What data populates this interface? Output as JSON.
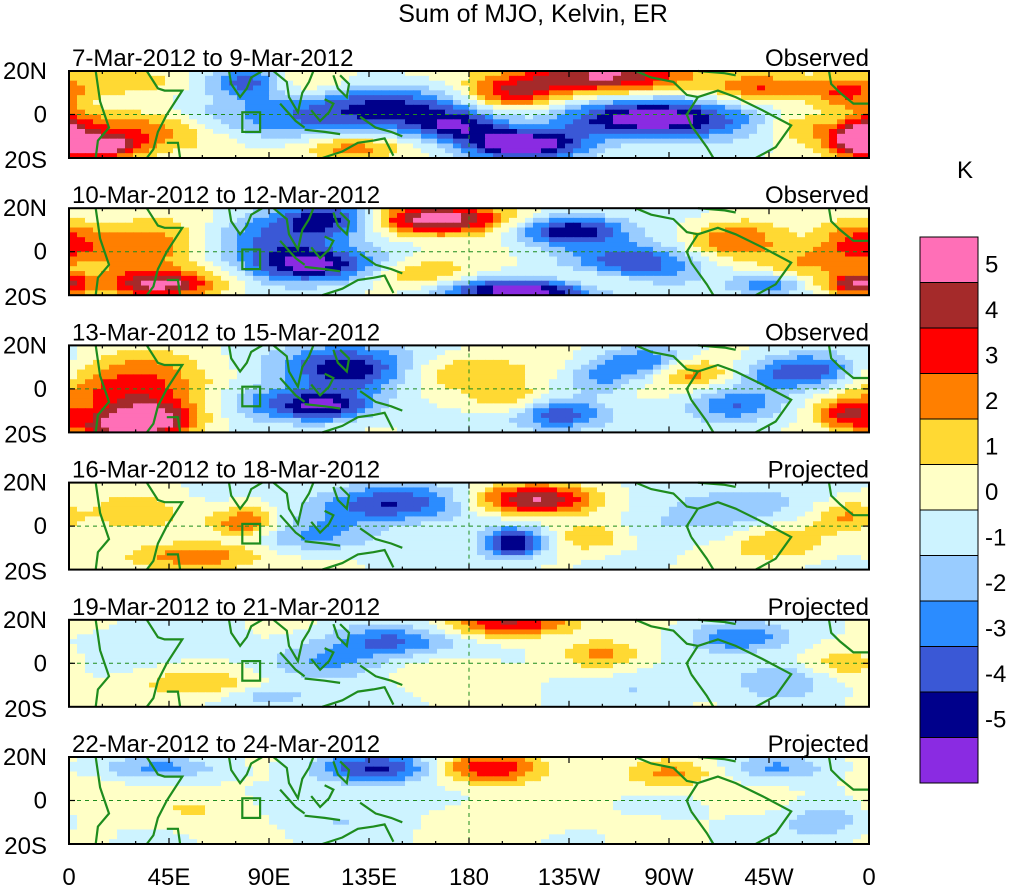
{
  "title": "Sum of MJO, Kelvin, ER",
  "colorbar": {
    "unit": "K",
    "labels": [
      "5",
      "4",
      "3",
      "2",
      "1",
      "0",
      "-1",
      "-2",
      "-3",
      "-4",
      "-5"
    ],
    "colors": [
      "#ff6fb7",
      "#a52a2a",
      "#ff0000",
      "#ff7f00",
      "#ffd933",
      "#ffffc6",
      "#cdf3ff",
      "#99ccff",
      "#2b8cff",
      "#3a58d6",
      "#00008b",
      "#8a2be2"
    ]
  },
  "axes": {
    "lat_labels": [
      "20N",
      "0",
      "20S"
    ],
    "lon_labels": [
      "0",
      "45E",
      "90E",
      "135E",
      "180",
      "135W",
      "90W",
      "45W",
      "0"
    ]
  },
  "panels": [
    {
      "date_range": "7-Mar-2012 to 9-Mar-2012",
      "status": "Observed"
    },
    {
      "date_range": "10-Mar-2012 to 12-Mar-2012",
      "status": "Observed"
    },
    {
      "date_range": "13-Mar-2012 to 15-Mar-2012",
      "status": "Observed"
    },
    {
      "date_range": "16-Mar-2012 to 18-Mar-2012",
      "status": "Projected"
    },
    {
      "date_range": "19-Mar-2012 to 21-Mar-2012",
      "status": "Projected"
    },
    {
      "date_range": "22-Mar-2012 to 24-Mar-2012",
      "status": "Projected"
    }
  ],
  "map_data": {
    "lat_range": [
      -20,
      20
    ],
    "lon_range": [
      0,
      360
    ],
    "blobs": [
      [
        [
          240,
          18,
          60,
          9,
          5
        ],
        [
          265,
          -2,
          60,
          10,
          -6
        ],
        [
          200,
          10,
          30,
          8,
          4
        ],
        [
          205,
          -14,
          40,
          8,
          -6
        ],
        [
          175,
          -5,
          30,
          8,
          -4
        ],
        [
          145,
          5,
          50,
          10,
          -3
        ],
        [
          110,
          -2,
          70,
          12,
          -3
        ],
        [
          30,
          -8,
          50,
          10,
          3
        ],
        [
          25,
          15,
          35,
          7,
          2
        ],
        [
          310,
          12,
          30,
          8,
          3
        ],
        [
          330,
          -5,
          25,
          8,
          2
        ],
        [
          350,
          10,
          25,
          9,
          3
        ],
        [
          355,
          -12,
          20,
          8,
          5
        ],
        [
          15,
          -15,
          25,
          6,
          5
        ],
        [
          125,
          -15,
          35,
          7,
          3
        ],
        [
          105,
          15,
          30,
          8,
          2
        ],
        [
          80,
          15,
          25,
          8,
          -4
        ],
        [
          0,
          -5,
          15,
          10,
          2
        ]
      ],
      [
        [
          165,
          15,
          50,
          8,
          6
        ],
        [
          205,
          -18,
          50,
          6,
          -6
        ],
        [
          120,
          15,
          35,
          9,
          -5
        ],
        [
          90,
          5,
          40,
          12,
          -3
        ],
        [
          110,
          -6,
          40,
          9,
          -5
        ],
        [
          35,
          2,
          40,
          14,
          3
        ],
        [
          40,
          -15,
          35,
          7,
          5
        ],
        [
          225,
          10,
          35,
          8,
          -5
        ],
        [
          255,
          -5,
          40,
          10,
          -4
        ],
        [
          300,
          5,
          30,
          10,
          3
        ],
        [
          330,
          -5,
          30,
          10,
          2
        ],
        [
          355,
          5,
          25,
          12,
          3
        ],
        [
          355,
          -15,
          20,
          6,
          5
        ],
        [
          160,
          -10,
          30,
          8,
          2
        ],
        [
          240,
          -14,
          30,
          6,
          2
        ],
        [
          315,
          -15,
          25,
          6,
          -3
        ]
      ],
      [
        [
          30,
          0,
          45,
          16,
          4
        ],
        [
          35,
          -14,
          30,
          8,
          5
        ],
        [
          125,
          10,
          40,
          12,
          -5
        ],
        [
          115,
          -8,
          30,
          8,
          -5
        ],
        [
          85,
          -5,
          30,
          10,
          -2
        ],
        [
          330,
          8,
          35,
          9,
          -4
        ],
        [
          350,
          -12,
          20,
          8,
          4
        ],
        [
          180,
          8,
          40,
          9,
          2
        ],
        [
          220,
          -12,
          30,
          8,
          -4
        ],
        [
          260,
          12,
          30,
          8,
          -3
        ],
        [
          280,
          8,
          25,
          8,
          3
        ],
        [
          300,
          -8,
          30,
          9,
          -3
        ],
        [
          200,
          -5,
          25,
          8,
          2
        ],
        [
          240,
          5,
          20,
          8,
          -2
        ],
        [
          20,
          -18,
          30,
          6,
          3
        ]
      ],
      [
        [
          210,
          12,
          40,
          8,
          5
        ],
        [
          145,
          10,
          50,
          10,
          -4
        ],
        [
          200,
          -8,
          20,
          8,
          -5
        ],
        [
          235,
          -5,
          25,
          8,
          2
        ],
        [
          60,
          -14,
          40,
          7,
          3
        ],
        [
          30,
          5,
          30,
          10,
          2
        ],
        [
          80,
          2,
          20,
          8,
          3
        ],
        [
          300,
          10,
          40,
          10,
          -2
        ],
        [
          320,
          -8,
          30,
          9,
          2
        ],
        [
          350,
          5,
          20,
          8,
          2
        ],
        [
          110,
          -5,
          40,
          9,
          -2
        ],
        [
          260,
          0,
          40,
          10,
          -1
        ]
      ],
      [
        [
          145,
          10,
          40,
          8,
          -3
        ],
        [
          200,
          18,
          40,
          6,
          4
        ],
        [
          240,
          5,
          25,
          8,
          2
        ],
        [
          120,
          0,
          40,
          10,
          -2
        ],
        [
          35,
          8,
          40,
          10,
          -1
        ],
        [
          60,
          -10,
          40,
          8,
          2
        ],
        [
          300,
          12,
          30,
          8,
          -3
        ],
        [
          320,
          -8,
          30,
          9,
          -2
        ],
        [
          350,
          0,
          20,
          8,
          2
        ],
        [
          170,
          -5,
          40,
          10,
          1
        ],
        [
          260,
          -12,
          40,
          8,
          -1
        ],
        [
          90,
          -15,
          30,
          6,
          -2
        ]
      ],
      [
        [
          140,
          15,
          40,
          8,
          -4
        ],
        [
          190,
          15,
          35,
          8,
          4
        ],
        [
          40,
          15,
          40,
          6,
          -2
        ],
        [
          270,
          12,
          30,
          8,
          2
        ],
        [
          320,
          15,
          30,
          6,
          -2
        ],
        [
          60,
          -5,
          40,
          10,
          1
        ],
        [
          120,
          -8,
          40,
          10,
          -1
        ],
        [
          340,
          -10,
          25,
          8,
          -2
        ],
        [
          200,
          -8,
          40,
          10,
          1
        ],
        [
          10,
          0,
          25,
          10,
          1
        ]
      ]
    ]
  }
}
